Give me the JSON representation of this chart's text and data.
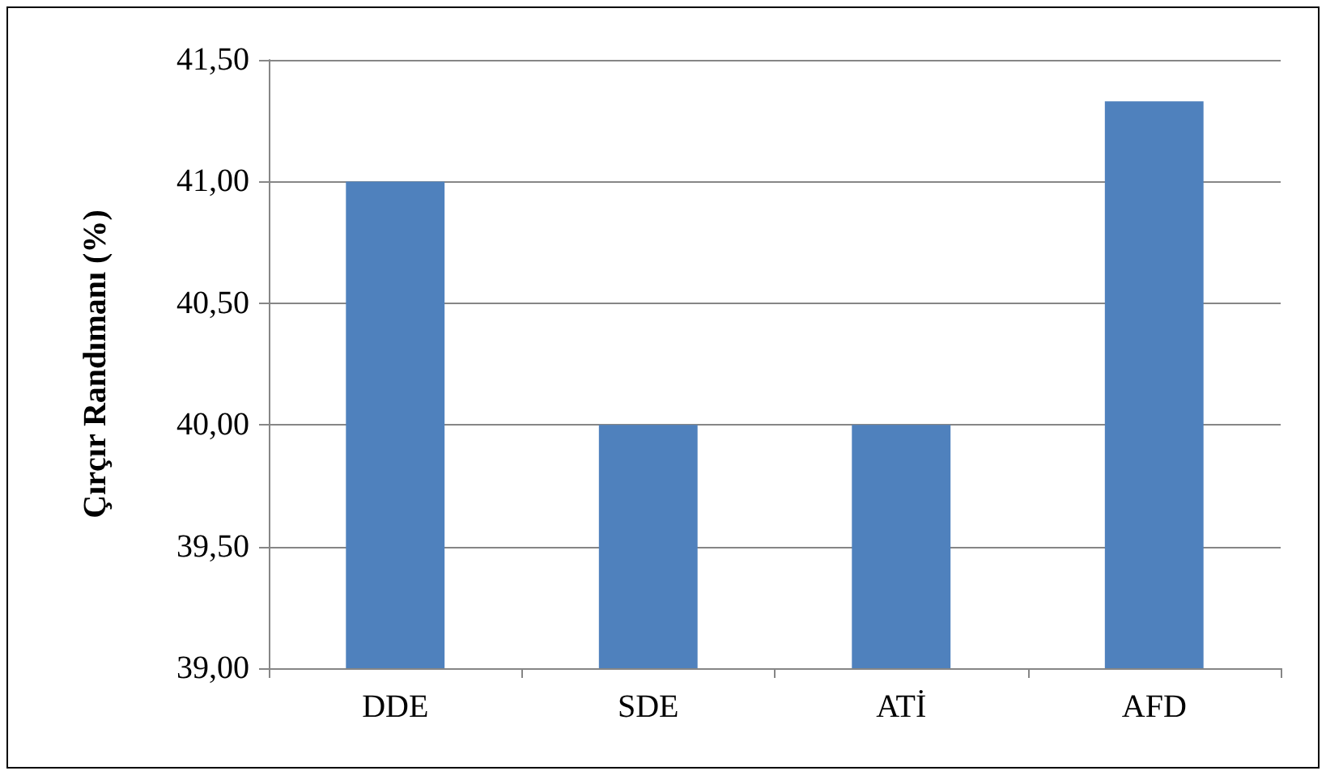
{
  "chart_data": {
    "type": "bar",
    "ylabel": "Çırçır Randımanı (%)",
    "categories": [
      "DDE",
      "SDE",
      "ATİ",
      "AFD"
    ],
    "values": [
      41.0,
      40.0,
      40.0,
      41.33
    ],
    "color": "#4f81bd",
    "ylim": [
      39,
      41.5
    ],
    "yticks": [
      {
        "value": 39,
        "label": "39,00"
      },
      {
        "value": 39.5,
        "label": "39,50"
      },
      {
        "value": 40,
        "label": "40,00"
      },
      {
        "value": 40.5,
        "label": "40,50"
      },
      {
        "value": 41,
        "label": "41,00"
      },
      {
        "value": 41.5,
        "label": "41,50"
      }
    ],
    "grid": "y"
  }
}
